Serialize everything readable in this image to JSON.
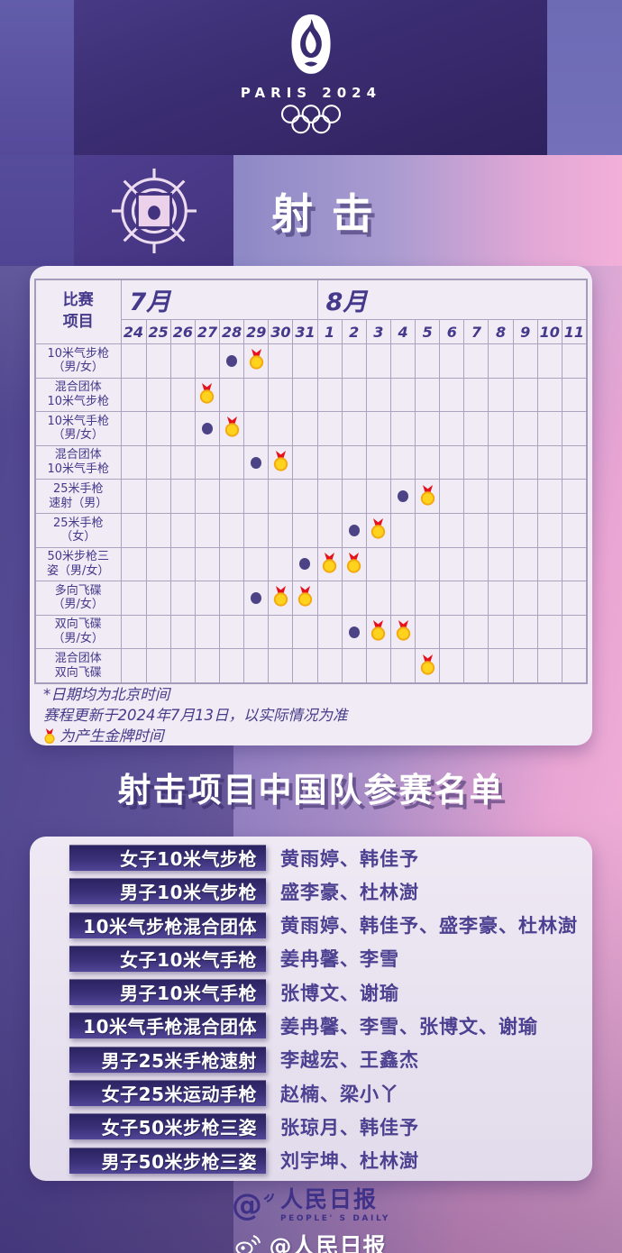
{
  "header": {
    "logo_wordmark": "PARIS 2024",
    "sport_title": "射击"
  },
  "schedule": {
    "corner_label": "比赛\n项目",
    "months": [
      {
        "label": "7月",
        "span": 8
      },
      {
        "label": "8月",
        "span": 11
      }
    ],
    "days": [
      "24",
      "25",
      "26",
      "27",
      "28",
      "29",
      "30",
      "31",
      "1",
      "2",
      "3",
      "4",
      "5",
      "6",
      "7",
      "8",
      "9",
      "10",
      "11"
    ],
    "rows": [
      {
        "label": "10米气步枪\n（男/女）",
        "marks": [
          {
            "col": 4,
            "type": "dot",
            "date": "7/28"
          },
          {
            "col": 5,
            "type": "medal",
            "date": "7/29"
          }
        ]
      },
      {
        "label": "混合团体\n10米气步枪",
        "marks": [
          {
            "col": 3,
            "type": "medal",
            "date": "7/27"
          }
        ]
      },
      {
        "label": "10米气手枪\n（男/女）",
        "marks": [
          {
            "col": 3,
            "type": "dot",
            "date": "7/27"
          },
          {
            "col": 4,
            "type": "medal",
            "date": "7/28"
          }
        ]
      },
      {
        "label": "混合团体\n10米气手枪",
        "marks": [
          {
            "col": 5,
            "type": "dot",
            "date": "7/29"
          },
          {
            "col": 6,
            "type": "medal",
            "date": "7/30"
          }
        ]
      },
      {
        "label": "25米手枪\n速射（男）",
        "marks": [
          {
            "col": 11,
            "type": "dot",
            "date": "8/4"
          },
          {
            "col": 12,
            "type": "medal",
            "date": "8/5"
          }
        ]
      },
      {
        "label": "25米手枪\n（女）",
        "marks": [
          {
            "col": 9,
            "type": "dot",
            "date": "8/2"
          },
          {
            "col": 10,
            "type": "medal",
            "date": "8/3"
          }
        ]
      },
      {
        "label": "50米步枪三\n姿（男/女）",
        "marks": [
          {
            "col": 7,
            "type": "dot",
            "date": "7/31"
          },
          {
            "col": 8,
            "type": "medal",
            "date": "8/1"
          },
          {
            "col": 9,
            "type": "medal",
            "date": "8/2"
          }
        ]
      },
      {
        "label": "多向飞碟\n（男/女）",
        "marks": [
          {
            "col": 5,
            "type": "dot",
            "date": "7/29"
          },
          {
            "col": 6,
            "type": "medal",
            "date": "7/30"
          },
          {
            "col": 7,
            "type": "medal",
            "date": "7/31"
          }
        ]
      },
      {
        "label": "双向飞碟\n（男/女）",
        "marks": [
          {
            "col": 9,
            "type": "dot",
            "date": "8/2"
          },
          {
            "col": 10,
            "type": "medal",
            "date": "8/3"
          },
          {
            "col": 11,
            "type": "medal",
            "date": "8/4"
          }
        ]
      },
      {
        "label": "混合团体\n双向飞碟",
        "marks": [
          {
            "col": 12,
            "type": "medal",
            "date": "8/5"
          }
        ]
      }
    ],
    "notes": [
      "*日期均为北京时间",
      "赛程更新于2024年7月13日，以实际情况为准",
      "为产生金牌时间"
    ]
  },
  "roster": {
    "title": "射击项目中国队参赛名单",
    "entries": [
      {
        "event": "女子10米气步枪",
        "athletes": "黄雨婷、韩佳予"
      },
      {
        "event": "男子10米气步枪",
        "athletes": "盛李豪、杜林澍"
      },
      {
        "event": "10米气步枪混合团体",
        "athletes": "黄雨婷、韩佳予、盛李豪、杜林澍"
      },
      {
        "event": "女子10米气手枪",
        "athletes": "姜冉馨、李雪"
      },
      {
        "event": "男子10米气手枪",
        "athletes": "张博文、谢瑜"
      },
      {
        "event": "10米气手枪混合团体",
        "athletes": "姜冉馨、李雪、张博文、谢瑜"
      },
      {
        "event": "男子25米手枪速射",
        "athletes": "李越宏、王鑫杰"
      },
      {
        "event": "女子25米运动手枪",
        "athletes": "赵楠、梁小丫"
      },
      {
        "event": "女子50米步枪三姿",
        "athletes": "张琼月、韩佳予"
      },
      {
        "event": "男子50米步枪三姿",
        "athletes": "刘宇坤、杜林澍"
      }
    ]
  },
  "footer": {
    "logo_at": "@",
    "logo_cn": "人民日报",
    "logo_en": "PEOPLE' S DAILY",
    "weibo_handle": "@人民日报"
  },
  "colors": {
    "medal_gold": "#FFD21E",
    "medal_rim": "#F2A90F",
    "medal_ribbon": "#E5121B",
    "dot": "#4B4385",
    "table_text": "#44398A",
    "card_bg": "#F1EBF5",
    "dark_purple": "#3A2C70",
    "pink": "#F2AFD8",
    "box_gradient_top": "#2A2260",
    "box_gradient_bottom": "#514597"
  }
}
